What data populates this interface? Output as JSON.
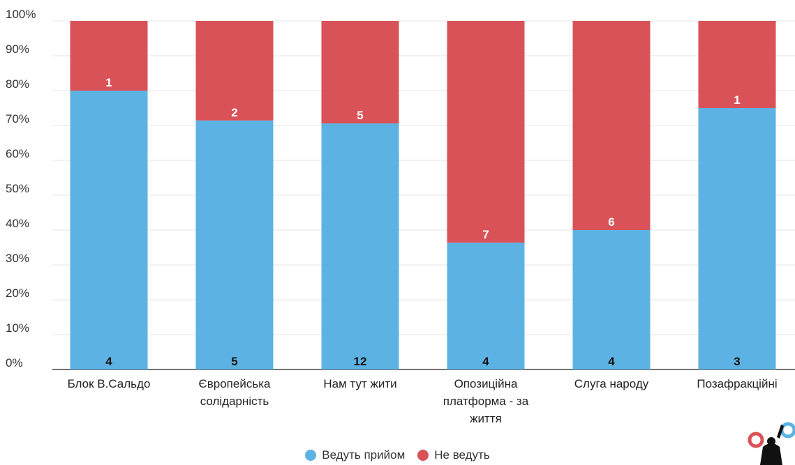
{
  "chart_data": {
    "type": "bar",
    "stacked": true,
    "normalized": true,
    "categories": [
      [
        "Блок В.Сальдо"
      ],
      [
        "Європейська",
        "солідарність"
      ],
      [
        "Нам тут жити"
      ],
      [
        "Опозиційна",
        "платформа - за",
        "життя"
      ],
      [
        "Слуга народу"
      ],
      [
        "Позафракційні"
      ]
    ],
    "series": [
      {
        "name": "Ведуть прийом",
        "values": [
          4,
          5,
          12,
          4,
          4,
          3
        ],
        "color": "#5cb3e3"
      },
      {
        "name": "Не ведуть",
        "values": [
          1,
          2,
          5,
          7,
          6,
          1
        ],
        "color": "#d95257"
      }
    ],
    "y_ticks": [
      "0%",
      "10%",
      "20%",
      "30%",
      "40%",
      "50%",
      "60%",
      "70%",
      "80%",
      "90%",
      "100%"
    ],
    "ylim": [
      0,
      100
    ],
    "grid": true,
    "legend_position": "bottom-center"
  },
  "logo_icon": "person-circle-logo-icon"
}
